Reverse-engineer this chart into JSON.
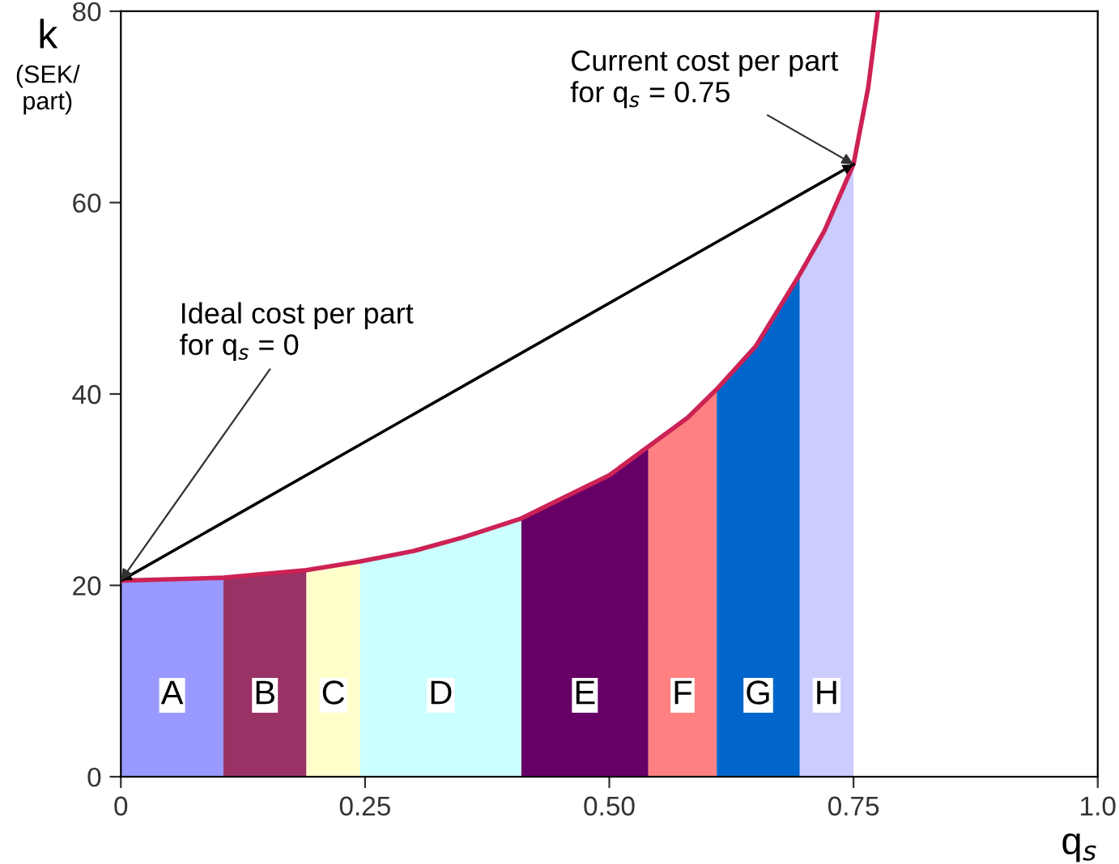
{
  "chart_data": {
    "type": "area",
    "xlabel": "q$_{s}$",
    "ylabel": "k\n(SEK/\npart)",
    "xlim": [
      0,
      1.0
    ],
    "ylim": [
      0,
      80
    ],
    "xticks": [
      0,
      0.25,
      {
        "value": 0.5,
        "label": "0.50"
      },
      0.75,
      {
        "value": 1.0,
        "label": "1.0"
      }
    ],
    "yticks": [
      0,
      20,
      40,
      60,
      80
    ],
    "grid": false,
    "legend": false,
    "series": [
      {
        "name": "A",
        "color": "#9999ff",
        "x": [
          0,
          0.105
        ],
        "values": [
          20.5,
          20.8
        ]
      },
      {
        "name": "B",
        "color": "#993366",
        "x": [
          0.105,
          0.19
        ],
        "values": [
          20.8,
          21.6
        ]
      },
      {
        "name": "C",
        "color": "#ffffcc",
        "x": [
          0.19,
          0.245
        ],
        "values": [
          21.6,
          22.5
        ]
      },
      {
        "name": "D",
        "color": "#ccffff",
        "x": [
          0.245,
          0.3,
          0.35,
          0.41
        ],
        "values": [
          22.5,
          23.6,
          25,
          27
        ]
      },
      {
        "name": "E",
        "color": "#660066",
        "x": [
          0.41,
          0.45,
          0.5,
          0.54
        ],
        "values": [
          27,
          29,
          31.5,
          34.5
        ]
      },
      {
        "name": "F",
        "color": "#ff8080",
        "x": [
          0.54,
          0.58,
          0.61
        ],
        "values": [
          34.5,
          37.5,
          40.5
        ]
      },
      {
        "name": "G",
        "color": "#0066cc",
        "x": [
          0.61,
          0.65,
          0.695
        ],
        "values": [
          40.5,
          45,
          52.5
        ]
      },
      {
        "name": "H",
        "color": "#ccccff",
        "x": [
          0.695,
          0.72,
          0.75
        ],
        "values": [
          52.5,
          57,
          64
        ]
      },
      {
        "type": "line",
        "color": "#cc2255",
        "x": [
          0,
          0.105,
          0.19,
          0.245,
          0.3,
          0.35,
          0.41,
          0.45,
          0.5,
          0.54,
          0.58,
          0.61,
          0.65,
          0.695,
          0.72,
          0.75,
          0.765,
          0.775
        ],
        "values": [
          20.5,
          20.8,
          21.6,
          22.5,
          23.6,
          25,
          27,
          29,
          31.5,
          34.5,
          37.5,
          40.5,
          45,
          52.5,
          57,
          64,
          72,
          80
        ]
      },
      {
        "type": "line",
        "color": "#000000",
        "x": [
          0,
          0.75
        ],
        "values": [
          20.5,
          64
        ]
      }
    ],
    "annotations": [
      {
        "text": "Current cost per part\nfor q$_{s}$ = 0.75",
        "x": 0.75,
        "y": 64
      },
      {
        "text": "Ideal cost per part\nfor q$_{s}$ = 0",
        "x": 0,
        "y": 20.5
      }
    ]
  }
}
